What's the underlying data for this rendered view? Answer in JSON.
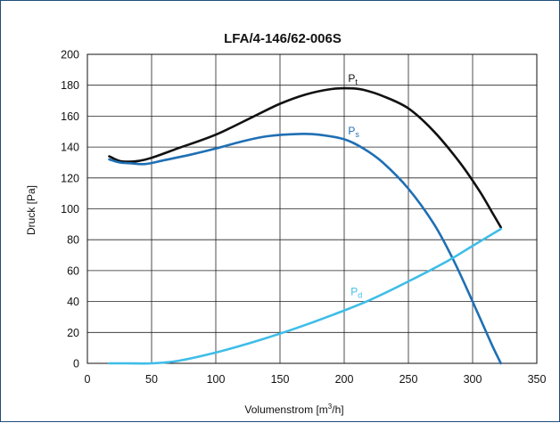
{
  "chart_data": {
    "type": "line",
    "title": "LFA/4-146/62-006S",
    "xlabel": "Volumenstrom [m³/h]",
    "xlabel_parts": {
      "main": "Volumenstrom [m",
      "sup": "3",
      "tail": "/h]"
    },
    "ylabel": "Druck [Pa]",
    "xlim": [
      0,
      350
    ],
    "ylim": [
      0,
      200
    ],
    "xticks": [
      0,
      50,
      100,
      150,
      200,
      250,
      300,
      350
    ],
    "yticks": [
      0,
      20,
      40,
      60,
      80,
      100,
      120,
      140,
      160,
      180,
      200
    ],
    "grid": true,
    "series": [
      {
        "name": "Pt",
        "label_main": "P",
        "label_sub": "t",
        "color": "#111111",
        "label_at": [
          203,
          182
        ],
        "points": [
          [
            17,
            134
          ],
          [
            25,
            131
          ],
          [
            33,
            130.5
          ],
          [
            40,
            131
          ],
          [
            50,
            133
          ],
          [
            70,
            139
          ],
          [
            100,
            148
          ],
          [
            130,
            160
          ],
          [
            150,
            168
          ],
          [
            170,
            174
          ],
          [
            190,
            177.5
          ],
          [
            205,
            178
          ],
          [
            215,
            177
          ],
          [
            230,
            173
          ],
          [
            250,
            165
          ],
          [
            270,
            150
          ],
          [
            290,
            130
          ],
          [
            305,
            112
          ],
          [
            315,
            98
          ],
          [
            322,
            88
          ]
        ]
      },
      {
        "name": "Ps",
        "label_main": "P",
        "label_sub": "s",
        "color": "#1f6fb4",
        "label_at": [
          203,
          148
        ],
        "points": [
          [
            17,
            132
          ],
          [
            25,
            130
          ],
          [
            33,
            129.5
          ],
          [
            45,
            129
          ],
          [
            60,
            131.5
          ],
          [
            80,
            135
          ],
          [
            100,
            139
          ],
          [
            120,
            143.5
          ],
          [
            140,
            147
          ],
          [
            165,
            148.5
          ],
          [
            180,
            148
          ],
          [
            200,
            145
          ],
          [
            215,
            139
          ],
          [
            230,
            130
          ],
          [
            250,
            113
          ],
          [
            270,
            90
          ],
          [
            285,
            67
          ],
          [
            300,
            40
          ],
          [
            315,
            12
          ],
          [
            322,
            0
          ]
        ]
      },
      {
        "name": "Pd",
        "label_main": "P",
        "label_sub": "d",
        "color": "#3ebde8",
        "label_at": [
          205,
          44
        ],
        "points": [
          [
            17,
            0
          ],
          [
            30,
            0
          ],
          [
            50,
            0
          ],
          [
            70,
            1.5
          ],
          [
            100,
            7
          ],
          [
            130,
            14
          ],
          [
            160,
            22
          ],
          [
            190,
            31
          ],
          [
            220,
            41
          ],
          [
            250,
            53
          ],
          [
            280,
            66
          ],
          [
            300,
            76
          ],
          [
            322,
            87
          ]
        ]
      }
    ]
  }
}
